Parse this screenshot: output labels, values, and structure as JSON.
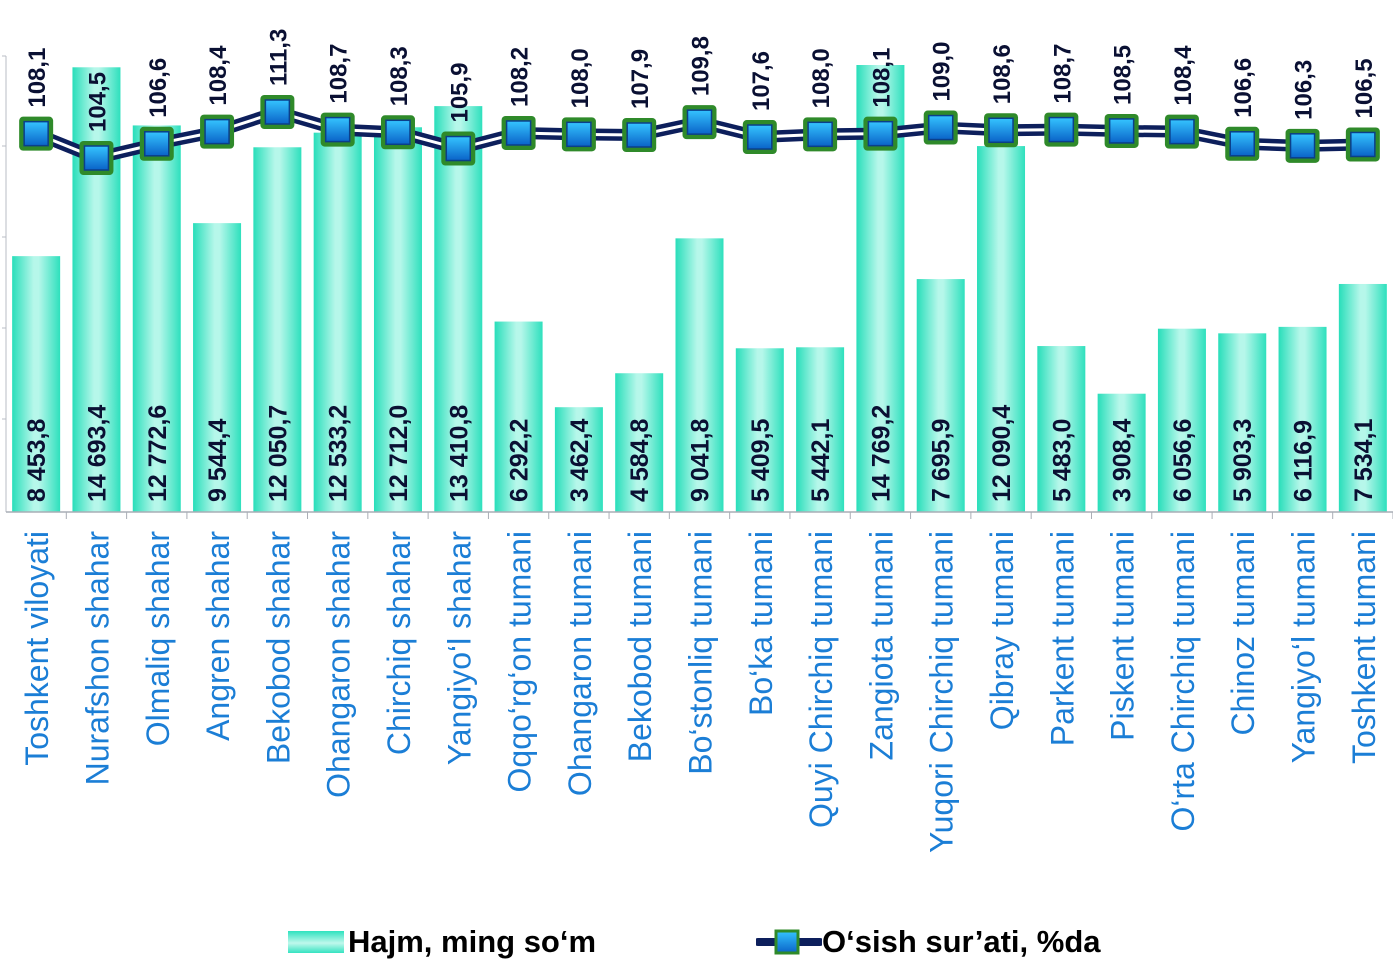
{
  "chart_data": {
    "type": "bar",
    "categories": [
      "Toshkent viloyati",
      "Nurafshon shahar",
      "Olmaliq shahar",
      "Angren shahar",
      "Bekobod shahar",
      "Ohangaron shahar",
      "Chirchiq shahar",
      "Yangiyo‘l shahar",
      "Oqqo‘rg‘on tumani",
      "Ohangaron tumani",
      "Bekobod tumani",
      "Bo‘stonliq tumani",
      "Bo‘ka tumani",
      "Quyi Chirchiq tumani",
      "Zangiota tumani",
      "Yuqori Chirchiq tumani",
      "Qibray tumani",
      "Parkent tumani",
      "Piskent tumani",
      "O‘rta Chirchiq tumani",
      "Chinoz tumani",
      "Yangiyo‘l tumani",
      "Toshkent tumani"
    ],
    "series": [
      {
        "name": "Hajm, ming so‘m",
        "type": "bar",
        "values": [
          8453.8,
          14693.4,
          12772.6,
          9544.4,
          12050.7,
          12533.2,
          12712.0,
          13410.8,
          6292.2,
          3462.4,
          4584.8,
          9041.8,
          5409.5,
          5442.1,
          14769.2,
          7695.9,
          12090.4,
          5483.0,
          3908.4,
          6056.6,
          5903.3,
          6116.9,
          7534.1
        ],
        "labels": [
          "8 453,8",
          "14 693,4",
          "12 772,6",
          "9 544,4",
          "12 050,7",
          "12 533,2",
          "12 712,0",
          "13 410,8",
          "6 292,2",
          "3 462,4",
          "4 584,8",
          "9 041,8",
          "5 409,5",
          "5 442,1",
          "14 769,2",
          "7 695,9",
          "12 090,4",
          "5 483,0",
          "3 908,4",
          "6 056,6",
          "5 903,3",
          "6 116,9",
          "7 534,1"
        ],
        "color": "#36e3c2"
      },
      {
        "name": "O‘sish sur’ati,  %da",
        "type": "line",
        "values": [
          108.1,
          104.5,
          106.6,
          108.4,
          111.3,
          108.7,
          108.3,
          105.9,
          108.2,
          108.0,
          107.9,
          109.8,
          107.6,
          108.0,
          108.1,
          109.0,
          108.6,
          108.7,
          108.5,
          108.4,
          106.6,
          106.3,
          106.5
        ],
        "labels": [
          "108,1",
          "104,5",
          "106,6",
          "108,4",
          "111,3",
          "108,7",
          "108,3",
          "105,9",
          "108,2",
          "108,0",
          "107,9",
          "109,8",
          "107,6",
          "108,0",
          "108,1",
          "109,0",
          "108,6",
          "108,7",
          "108,5",
          "108,4",
          "106,6",
          "106,3",
          "106,5"
        ],
        "line_color": "#0d1f5c",
        "marker_fill": "#1aa2e8",
        "marker_border": "#2f8a2a"
      }
    ],
    "legend_position": "bottom",
    "grid": false
  }
}
